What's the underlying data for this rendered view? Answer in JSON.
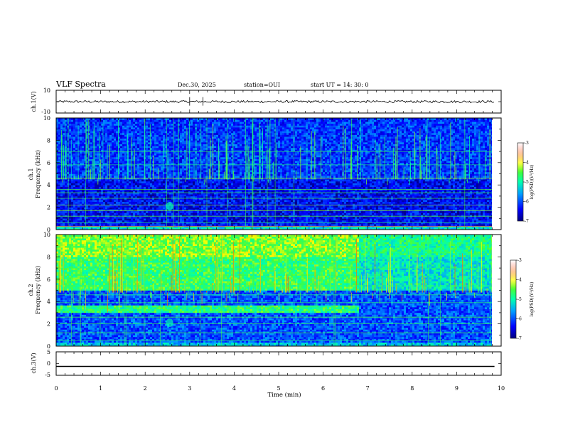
{
  "header": {
    "title": "VLF Spectra",
    "date": "Dec.30, 2025",
    "station": "station=OUI",
    "start": "start  UT  =   14: 30: 0"
  },
  "chart_data": [
    {
      "type": "line",
      "panel": "ch1-waveform",
      "ylabel": "ch.1(V)",
      "ylim": [
        -10,
        10
      ],
      "y_tick_labels": [
        "10",
        "-10"
      ],
      "baseline_value": 0,
      "noise_amplitude": 1,
      "spike_times_min": [
        3.0,
        3.3
      ]
    },
    {
      "type": "heatmap",
      "panel": "ch1-spectrogram",
      "ylabel_line1": "ch.1",
      "ylabel_line2": "Frequency  (kHz)",
      "ylim": [
        0,
        10
      ],
      "y_tick_labels": [
        "0",
        "2",
        "4",
        "6",
        "8",
        "10"
      ],
      "colorbar_label": "log(PSD)(V²/Hz)",
      "colorbar_range": [
        -7,
        -3
      ],
      "colorbar_tick_labels": [
        "-3",
        "-4",
        "-5",
        "-6",
        "-7"
      ],
      "horizontal_lines_khz": [
        0.3,
        0.6,
        1.2,
        1.7,
        2.2,
        2.8,
        3.3,
        3.6,
        4.6,
        5.8,
        7.0
      ]
    },
    {
      "type": "heatmap",
      "panel": "ch2-spectrogram",
      "ylabel_line1": "ch.2",
      "ylabel_line2": "Frequency  (kHz)",
      "ylim": [
        0,
        10
      ],
      "y_tick_labels": [
        "0",
        "2",
        "4",
        "6",
        "8",
        "10"
      ],
      "colorbar_label": "log(PSD)(V²/Hz)",
      "colorbar_range": [
        -7,
        -3
      ],
      "colorbar_tick_labels": [
        "-3",
        "-4",
        "-5",
        "-6",
        "-7"
      ],
      "band_khz": [
        3.0,
        3.6
      ],
      "band_end_min": 6.8,
      "horizontal_lines_khz": [
        0.5,
        1.2,
        2.0,
        2.6,
        3.9,
        4.6,
        5.4,
        7.0
      ]
    },
    {
      "type": "line",
      "panel": "ch3-waveform",
      "ylabel": "ch.3(V)",
      "ylim": [
        -5,
        5
      ],
      "y_tick_labels": [
        "5",
        "0",
        "-5"
      ],
      "constant_value": -1.2
    }
  ],
  "x_axis": {
    "xlabel": "Time  (min)",
    "xlim": [
      0,
      10
    ],
    "data_end_min": 9.85,
    "tick_labels": [
      "0",
      "1",
      "2",
      "3",
      "4",
      "5",
      "6",
      "7",
      "8",
      "9",
      "10"
    ]
  },
  "colors": {
    "axis": "#000000",
    "background": "#ffffff"
  }
}
